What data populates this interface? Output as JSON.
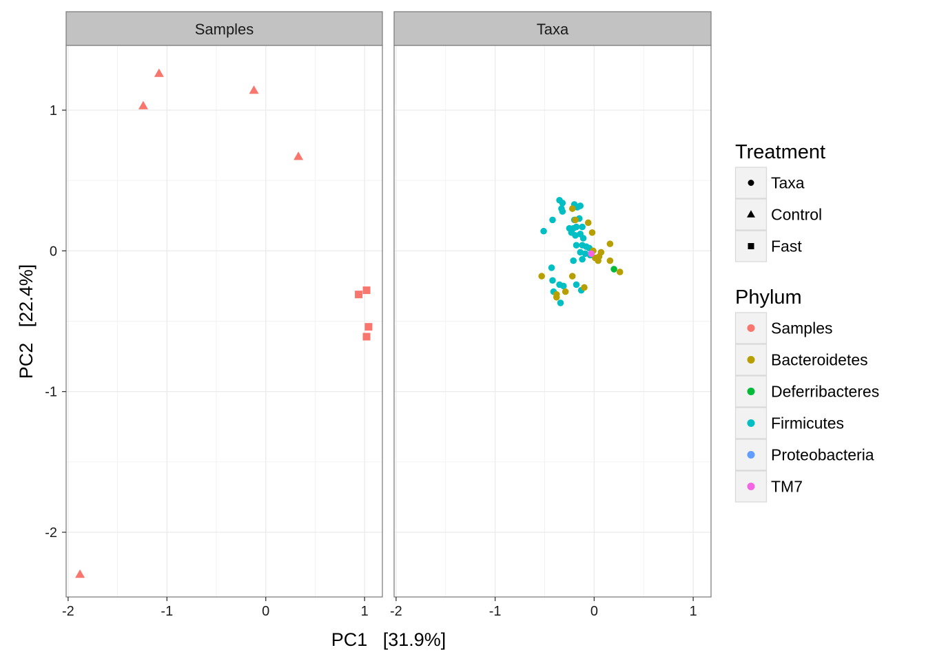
{
  "chart_data": {
    "type": "scatter",
    "xlabel": "PC1   [31.9%]",
    "ylabel": "PC2   [22.4%]",
    "xlim": [
      -2.02,
      1.18
    ],
    "ylim": [
      -2.46,
      1.46
    ],
    "x_ticks": [
      -2,
      -1,
      0,
      1
    ],
    "y_ticks": [
      -2,
      -1,
      0,
      1
    ],
    "x_tick_labels": [
      "-2",
      "-1",
      "0",
      "1"
    ],
    "y_tick_labels": [
      "-2",
      "-1",
      "0",
      "1"
    ],
    "grid": true,
    "legend_position": "right",
    "panels": [
      {
        "name": "Samples",
        "points": [
          {
            "x": -1.88,
            "y": -2.3,
            "shape": "triangle",
            "phylum": "Samples"
          },
          {
            "x": -1.24,
            "y": 1.03,
            "shape": "triangle",
            "phylum": "Samples"
          },
          {
            "x": -1.08,
            "y": 1.26,
            "shape": "triangle",
            "phylum": "Samples"
          },
          {
            "x": -0.12,
            "y": 1.14,
            "shape": "triangle",
            "phylum": "Samples"
          },
          {
            "x": 0.33,
            "y": 0.67,
            "shape": "triangle",
            "phylum": "Samples"
          },
          {
            "x": 0.94,
            "y": -0.31,
            "shape": "square",
            "phylum": "Samples"
          },
          {
            "x": 1.02,
            "y": -0.28,
            "shape": "square",
            "phylum": "Samples"
          },
          {
            "x": 1.04,
            "y": -0.54,
            "shape": "square",
            "phylum": "Samples"
          },
          {
            "x": 1.02,
            "y": -0.61,
            "shape": "square",
            "phylum": "Samples"
          }
        ]
      },
      {
        "name": "Taxa",
        "points": [
          {
            "x": -0.35,
            "y": 0.36,
            "shape": "circle",
            "phylum": "Firmicutes"
          },
          {
            "x": -0.32,
            "y": 0.34,
            "shape": "circle",
            "phylum": "Firmicutes"
          },
          {
            "x": -0.33,
            "y": 0.3,
            "shape": "circle",
            "phylum": "Firmicutes"
          },
          {
            "x": -0.32,
            "y": 0.28,
            "shape": "circle",
            "phylum": "Firmicutes"
          },
          {
            "x": -0.2,
            "y": 0.33,
            "shape": "circle",
            "phylum": "Firmicutes"
          },
          {
            "x": -0.14,
            "y": 0.32,
            "shape": "circle",
            "phylum": "Firmicutes"
          },
          {
            "x": -0.17,
            "y": 0.31,
            "shape": "circle",
            "phylum": "Firmicutes"
          },
          {
            "x": -0.42,
            "y": 0.22,
            "shape": "circle",
            "phylum": "Firmicutes"
          },
          {
            "x": -0.2,
            "y": 0.22,
            "shape": "circle",
            "phylum": "Firmicutes"
          },
          {
            "x": -0.15,
            "y": 0.23,
            "shape": "circle",
            "phylum": "Firmicutes"
          },
          {
            "x": -0.51,
            "y": 0.14,
            "shape": "circle",
            "phylum": "Firmicutes"
          },
          {
            "x": -0.25,
            "y": 0.16,
            "shape": "circle",
            "phylum": "Firmicutes"
          },
          {
            "x": -0.21,
            "y": 0.16,
            "shape": "circle",
            "phylum": "Firmicutes"
          },
          {
            "x": -0.18,
            "y": 0.17,
            "shape": "circle",
            "phylum": "Firmicutes"
          },
          {
            "x": -0.12,
            "y": 0.17,
            "shape": "circle",
            "phylum": "Firmicutes"
          },
          {
            "x": -0.23,
            "y": 0.13,
            "shape": "circle",
            "phylum": "Firmicutes"
          },
          {
            "x": -0.14,
            "y": 0.12,
            "shape": "circle",
            "phylum": "Firmicutes"
          },
          {
            "x": -0.19,
            "y": 0.11,
            "shape": "circle",
            "phylum": "Firmicutes"
          },
          {
            "x": -0.11,
            "y": 0.09,
            "shape": "circle",
            "phylum": "Firmicutes"
          },
          {
            "x": -0.18,
            "y": 0.04,
            "shape": "circle",
            "phylum": "Firmicutes"
          },
          {
            "x": -0.12,
            "y": 0.04,
            "shape": "circle",
            "phylum": "Firmicutes"
          },
          {
            "x": -0.08,
            "y": 0.03,
            "shape": "circle",
            "phylum": "Firmicutes"
          },
          {
            "x": -0.05,
            "y": 0.02,
            "shape": "circle",
            "phylum": "Firmicutes"
          },
          {
            "x": -0.14,
            "y": -0.01,
            "shape": "circle",
            "phylum": "Firmicutes"
          },
          {
            "x": -0.09,
            "y": -0.02,
            "shape": "circle",
            "phylum": "Firmicutes"
          },
          {
            "x": -0.12,
            "y": -0.06,
            "shape": "circle",
            "phylum": "Firmicutes"
          },
          {
            "x": -0.04,
            "y": -0.03,
            "shape": "circle",
            "phylum": "Firmicutes"
          },
          {
            "x": -0.02,
            "y": 0.0,
            "shape": "circle",
            "phylum": "Firmicutes"
          },
          {
            "x": -0.21,
            "y": -0.07,
            "shape": "circle",
            "phylum": "Firmicutes"
          },
          {
            "x": -0.43,
            "y": -0.12,
            "shape": "circle",
            "phylum": "Firmicutes"
          },
          {
            "x": -0.42,
            "y": -0.21,
            "shape": "circle",
            "phylum": "Firmicutes"
          },
          {
            "x": -0.35,
            "y": -0.24,
            "shape": "circle",
            "phylum": "Firmicutes"
          },
          {
            "x": -0.31,
            "y": -0.25,
            "shape": "circle",
            "phylum": "Firmicutes"
          },
          {
            "x": -0.18,
            "y": -0.24,
            "shape": "circle",
            "phylum": "Firmicutes"
          },
          {
            "x": -0.41,
            "y": -0.29,
            "shape": "circle",
            "phylum": "Firmicutes"
          },
          {
            "x": -0.13,
            "y": -0.28,
            "shape": "circle",
            "phylum": "Firmicutes"
          },
          {
            "x": -0.34,
            "y": -0.37,
            "shape": "circle",
            "phylum": "Firmicutes"
          },
          {
            "x": -0.22,
            "y": 0.3,
            "shape": "circle",
            "phylum": "Bacteroidetes"
          },
          {
            "x": -0.19,
            "y": 0.22,
            "shape": "circle",
            "phylum": "Bacteroidetes"
          },
          {
            "x": -0.06,
            "y": 0.2,
            "shape": "circle",
            "phylum": "Bacteroidetes"
          },
          {
            "x": -0.02,
            "y": 0.13,
            "shape": "circle",
            "phylum": "Bacteroidetes"
          },
          {
            "x": 0.16,
            "y": 0.05,
            "shape": "circle",
            "phylum": "Bacteroidetes"
          },
          {
            "x": -0.01,
            "y": 0.0,
            "shape": "circle",
            "phylum": "Bacteroidetes"
          },
          {
            "x": 0.07,
            "y": -0.01,
            "shape": "circle",
            "phylum": "Bacteroidetes"
          },
          {
            "x": 0.05,
            "y": -0.04,
            "shape": "circle",
            "phylum": "Bacteroidetes"
          },
          {
            "x": 0.01,
            "y": -0.05,
            "shape": "circle",
            "phylum": "Bacteroidetes"
          },
          {
            "x": 0.04,
            "y": -0.07,
            "shape": "circle",
            "phylum": "Bacteroidetes"
          },
          {
            "x": 0.16,
            "y": -0.07,
            "shape": "circle",
            "phylum": "Bacteroidetes"
          },
          {
            "x": 0.26,
            "y": -0.15,
            "shape": "circle",
            "phylum": "Bacteroidetes"
          },
          {
            "x": -0.53,
            "y": -0.18,
            "shape": "circle",
            "phylum": "Bacteroidetes"
          },
          {
            "x": -0.22,
            "y": -0.18,
            "shape": "circle",
            "phylum": "Bacteroidetes"
          },
          {
            "x": -0.1,
            "y": -0.26,
            "shape": "circle",
            "phylum": "Bacteroidetes"
          },
          {
            "x": -0.29,
            "y": -0.29,
            "shape": "circle",
            "phylum": "Bacteroidetes"
          },
          {
            "x": -0.38,
            "y": -0.31,
            "shape": "circle",
            "phylum": "Bacteroidetes"
          },
          {
            "x": -0.38,
            "y": -0.33,
            "shape": "circle",
            "phylum": "Bacteroidetes"
          },
          {
            "x": 0.2,
            "y": -0.13,
            "shape": "circle",
            "phylum": "Deferribacteres"
          },
          {
            "x": -0.03,
            "y": -0.02,
            "shape": "circle",
            "phylum": "TM7"
          }
        ]
      }
    ],
    "legends": {
      "treatment": {
        "title": "Treatment",
        "items": [
          {
            "label": "Taxa",
            "shape": "circle"
          },
          {
            "label": "Control",
            "shape": "triangle"
          },
          {
            "label": "Fast",
            "shape": "square"
          }
        ]
      },
      "phylum": {
        "title": "Phylum",
        "items": [
          {
            "label": "Samples",
            "color": "#F8766D"
          },
          {
            "label": "Bacteroidetes",
            "color": "#B79F00"
          },
          {
            "label": "Deferribacteres",
            "color": "#00BA38"
          },
          {
            "label": "Firmicutes",
            "color": "#00BFC4"
          },
          {
            "label": "Proteobacteria",
            "color": "#619CFF"
          },
          {
            "label": "TM7",
            "color": "#F564E3"
          }
        ]
      }
    }
  }
}
